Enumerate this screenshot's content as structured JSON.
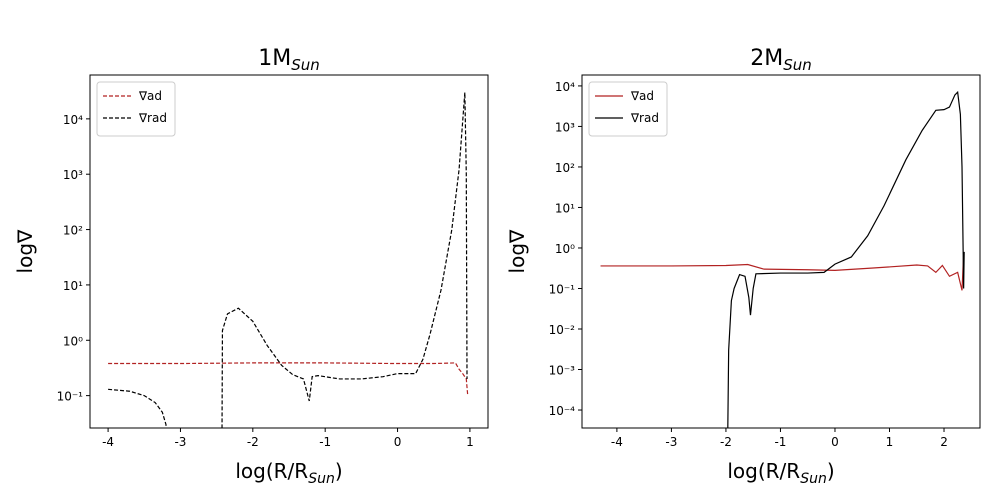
{
  "chart_data": [
    {
      "type": "line",
      "title": {
        "text": "1M",
        "sub": "Sun"
      },
      "xlabel": {
        "text": "log(R/R",
        "sub": "Sun",
        "end": ")"
      },
      "ylabel": "log∇",
      "log_y": true,
      "xlim": [
        -4.25,
        1.25
      ],
      "xticks": [
        -4,
        -3,
        -2,
        -1,
        0,
        1
      ],
      "ylim": [
        0.026,
        62000
      ],
      "yticks": [
        {
          "value": 0.1,
          "label": "10⁻¹"
        },
        {
          "value": 1,
          "label": "10⁰"
        },
        {
          "value": 10,
          "label": "10¹"
        },
        {
          "value": 100,
          "label": "10²"
        },
        {
          "value": 1000,
          "label": "10³"
        },
        {
          "value": 10000,
          "label": "10⁴"
        }
      ],
      "legend": "upper left",
      "series": [
        {
          "name": "∇ad",
          "color": "#b22222",
          "linestyle": "dashed",
          "x": [
            -4,
            -3,
            -2,
            -1,
            0,
            0.5,
            0.8,
            0.85,
            0.9,
            0.95,
            0.97
          ],
          "values": [
            0.38,
            0.38,
            0.39,
            0.39,
            0.38,
            0.38,
            0.39,
            0.3,
            0.25,
            0.2,
            0.1
          ]
        },
        {
          "name": "∇rad",
          "color": "#000000",
          "linestyle": "dashed",
          "x": [
            -4,
            -3.7,
            -3.5,
            -3.35,
            -3.25,
            -3.2,
            -3.19,
            -2.9,
            -2.43,
            -2.42,
            -2.35,
            -2.2,
            -2.0,
            -1.8,
            -1.6,
            -1.45,
            -1.3,
            -1.22,
            -1.18,
            -1.1,
            -0.8,
            -0.5,
            -0.2,
            0,
            0.25,
            0.35,
            0.45,
            0.6,
            0.75,
            0.85,
            0.93,
            0.95,
            0.96
          ],
          "values": [
            0.13,
            0.12,
            0.1,
            0.075,
            0.05,
            0.03,
            0.001,
            null,
            0.001,
            1.5,
            3,
            3.8,
            2.2,
            0.8,
            0.35,
            0.24,
            0.2,
            0.08,
            0.22,
            0.23,
            0.2,
            0.2,
            0.22,
            0.25,
            0.25,
            0.45,
            1.3,
            8,
            100,
            1200,
            30000,
            1000,
            0.2
          ]
        }
      ]
    },
    {
      "type": "line",
      "title": {
        "text": "2M",
        "sub": "Sun"
      },
      "xlabel": {
        "text": "log(R/R",
        "sub": "Sun",
        "end": ")"
      },
      "ylabel": "log∇",
      "log_y": true,
      "xlim": [
        -4.64,
        2.66
      ],
      "xticks": [
        -4,
        -3,
        -2,
        -1,
        0,
        1,
        2
      ],
      "ylim": [
        3.6e-05,
        18600
      ],
      "yticks": [
        {
          "value": 0.0001,
          "label": "10⁻⁴"
        },
        {
          "value": 0.001,
          "label": "10⁻³"
        },
        {
          "value": 0.01,
          "label": "10⁻²"
        },
        {
          "value": 0.1,
          "label": "10⁻¹"
        },
        {
          "value": 1,
          "label": "10⁰"
        },
        {
          "value": 10,
          "label": "10¹"
        },
        {
          "value": 100,
          "label": "10²"
        },
        {
          "value": 1000,
          "label": "10³"
        },
        {
          "value": 10000,
          "label": "10⁴"
        }
      ],
      "legend": "upper left",
      "series": [
        {
          "name": "∇ad",
          "color": "#b22222",
          "linestyle": "solid",
          "x": [
            -4.3,
            -3,
            -2,
            -1.6,
            -1.3,
            -0.5,
            0,
            0.7,
            1.5,
            1.7,
            1.85,
            1.97,
            2.1,
            2.25,
            2.33,
            2.36
          ],
          "values": [
            0.36,
            0.36,
            0.37,
            0.39,
            0.3,
            0.29,
            0.28,
            0.32,
            0.38,
            0.36,
            0.25,
            0.37,
            0.2,
            0.25,
            0.09,
            0.7
          ]
        },
        {
          "name": "∇rad",
          "color": "#000000",
          "linestyle": "solid",
          "x": [
            -1.97,
            -1.95,
            -1.9,
            -1.85,
            -1.75,
            -1.65,
            -1.58,
            -1.55,
            -1.5,
            -1.45,
            -1,
            -0.5,
            -0.2,
            0,
            0.3,
            0.6,
            0.9,
            1.3,
            1.6,
            1.85,
            2.0,
            2.1,
            2.2,
            2.25,
            2.3,
            2.33,
            2.35,
            2.36,
            2.37
          ],
          "values": [
            1e-05,
            0.003,
            0.05,
            0.1,
            0.22,
            0.2,
            0.06,
            0.022,
            0.1,
            0.23,
            0.24,
            0.24,
            0.25,
            0.4,
            0.6,
            2,
            11,
            150,
            800,
            2500,
            2600,
            3000,
            6000,
            7000,
            2000,
            100,
            1,
            0.1,
            0.8
          ]
        }
      ]
    }
  ]
}
